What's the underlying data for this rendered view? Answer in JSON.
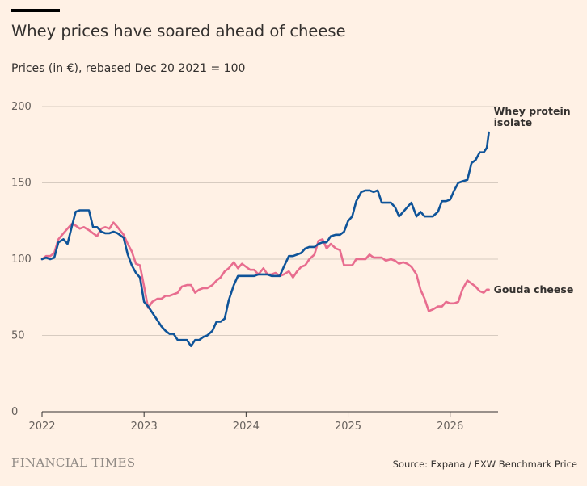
{
  "header": {
    "title": "Whey prices have soared ahead of cheese",
    "subtitle": "Prices (in €), rebased Dec 20 2021 = 100"
  },
  "footer": {
    "brand": "FINANCIAL TIMES",
    "source": "Source: Expana / EXW Benchmark Price"
  },
  "colors": {
    "background": "#FFF1E5",
    "whey": "#0F5499",
    "gouda": "#E86D8F",
    "grid": "#D7CBC0",
    "axis": "#33302E"
  },
  "chart_data": {
    "type": "line",
    "title": "Whey prices have soared ahead of cheese",
    "subtitle": "Prices (in €), rebased Dec 20 2021 = 100",
    "xlabel": "",
    "ylabel": "",
    "xlim": [
      2022.0,
      2026.47
    ],
    "ylim": [
      0,
      200
    ],
    "x_ticks": [
      "2022",
      "2023",
      "2024",
      "2025",
      "2026"
    ],
    "y_ticks": [
      0,
      50,
      100,
      150,
      200
    ],
    "grid": true,
    "legend": "direct labels at line ends",
    "series": [
      {
        "name": "Whey protein isolate",
        "label_lines": [
          "Whey protein",
          "isolate"
        ],
        "color": "#0F5499",
        "points": [
          [
            2022.0,
            100
          ],
          [
            2022.04,
            101
          ],
          [
            2022.08,
            100
          ],
          [
            2022.12,
            101
          ],
          [
            2022.16,
            111
          ],
          [
            2022.21,
            113
          ],
          [
            2022.25,
            110
          ],
          [
            2022.29,
            121
          ],
          [
            2022.33,
            131
          ],
          [
            2022.37,
            132
          ],
          [
            2022.41,
            132
          ],
          [
            2022.46,
            132
          ],
          [
            2022.5,
            121
          ],
          [
            2022.54,
            121
          ],
          [
            2022.58,
            118
          ],
          [
            2022.62,
            117
          ],
          [
            2022.66,
            117
          ],
          [
            2022.7,
            118
          ],
          [
            2022.74,
            117
          ],
          [
            2022.8,
            114
          ],
          [
            2022.84,
            103
          ],
          [
            2022.88,
            96
          ],
          [
            2022.92,
            91
          ],
          [
            2022.96,
            88
          ],
          [
            2023.0,
            72
          ],
          [
            2023.04,
            69
          ],
          [
            2023.08,
            65
          ],
          [
            2023.13,
            60
          ],
          [
            2023.17,
            56
          ],
          [
            2023.21,
            53
          ],
          [
            2023.25,
            51
          ],
          [
            2023.29,
            51
          ],
          [
            2023.33,
            47
          ],
          [
            2023.37,
            47
          ],
          [
            2023.42,
            47
          ],
          [
            2023.46,
            43
          ],
          [
            2023.5,
            47
          ],
          [
            2023.54,
            47
          ],
          [
            2023.58,
            49
          ],
          [
            2023.62,
            50
          ],
          [
            2023.67,
            53
          ],
          [
            2023.71,
            59
          ],
          [
            2023.75,
            59
          ],
          [
            2023.79,
            61
          ],
          [
            2023.83,
            73
          ],
          [
            2023.88,
            83
          ],
          [
            2023.92,
            89
          ],
          [
            2023.96,
            89
          ],
          [
            2024.0,
            89
          ],
          [
            2024.04,
            89
          ],
          [
            2024.08,
            89
          ],
          [
            2024.12,
            90
          ],
          [
            2024.17,
            90
          ],
          [
            2024.21,
            90
          ],
          [
            2024.25,
            89
          ],
          [
            2024.29,
            89
          ],
          [
            2024.33,
            89
          ],
          [
            2024.37,
            95
          ],
          [
            2024.42,
            102
          ],
          [
            2024.46,
            102
          ],
          [
            2024.5,
            103
          ],
          [
            2024.54,
            104
          ],
          [
            2024.58,
            107
          ],
          [
            2024.62,
            108
          ],
          [
            2024.67,
            108
          ],
          [
            2024.71,
            110
          ],
          [
            2024.75,
            111
          ],
          [
            2024.79,
            111
          ],
          [
            2024.83,
            115
          ],
          [
            2024.88,
            116
          ],
          [
            2024.92,
            116
          ],
          [
            2024.96,
            118
          ],
          [
            2025.0,
            125
          ],
          [
            2025.04,
            128
          ],
          [
            2025.08,
            138
          ],
          [
            2025.13,
            144
          ],
          [
            2025.17,
            145
          ],
          [
            2025.21,
            145
          ],
          [
            2025.25,
            144
          ],
          [
            2025.29,
            145
          ],
          [
            2025.33,
            137
          ],
          [
            2025.37,
            137
          ],
          [
            2025.42,
            137
          ],
          [
            2025.46,
            134
          ],
          [
            2025.5,
            128
          ],
          [
            2025.54,
            131
          ],
          [
            2025.58,
            134
          ],
          [
            2025.62,
            137
          ],
          [
            2025.67,
            128
          ],
          [
            2025.71,
            131
          ],
          [
            2025.75,
            128
          ],
          [
            2025.79,
            128
          ],
          [
            2025.83,
            128
          ],
          [
            2025.88,
            131
          ],
          [
            2025.92,
            138
          ],
          [
            2025.96,
            138
          ],
          [
            2026.0,
            139
          ],
          [
            2026.04,
            145
          ],
          [
            2026.08,
            150
          ],
          [
            2026.12,
            151
          ],
          [
            2026.17,
            152
          ],
          [
            2026.21,
            163
          ],
          [
            2026.25,
            165
          ],
          [
            2026.29,
            170
          ],
          [
            2026.33,
            170
          ],
          [
            2026.36,
            173
          ],
          [
            2026.38,
            183
          ]
        ]
      },
      {
        "name": "Gouda cheese",
        "label_lines": [
          "Gouda cheese"
        ],
        "color": "#E86D8F",
        "points": [
          [
            2022.0,
            100
          ],
          [
            2022.04,
            102
          ],
          [
            2022.08,
            102
          ],
          [
            2022.12,
            104
          ],
          [
            2022.16,
            113
          ],
          [
            2022.21,
            117
          ],
          [
            2022.25,
            120
          ],
          [
            2022.29,
            123
          ],
          [
            2022.33,
            122
          ],
          [
            2022.37,
            120
          ],
          [
            2022.41,
            121
          ],
          [
            2022.46,
            119
          ],
          [
            2022.5,
            117
          ],
          [
            2022.54,
            115
          ],
          [
            2022.58,
            120
          ],
          [
            2022.62,
            121
          ],
          [
            2022.66,
            120
          ],
          [
            2022.7,
            124
          ],
          [
            2022.74,
            121
          ],
          [
            2022.8,
            116
          ],
          [
            2022.84,
            110
          ],
          [
            2022.88,
            105
          ],
          [
            2022.92,
            97
          ],
          [
            2022.96,
            96
          ],
          [
            2023.0,
            82
          ],
          [
            2023.04,
            68
          ],
          [
            2023.08,
            72
          ],
          [
            2023.13,
            74
          ],
          [
            2023.17,
            74
          ],
          [
            2023.21,
            76
          ],
          [
            2023.25,
            76
          ],
          [
            2023.29,
            77
          ],
          [
            2023.33,
            78
          ],
          [
            2023.37,
            82
          ],
          [
            2023.42,
            83
          ],
          [
            2023.46,
            83
          ],
          [
            2023.5,
            78
          ],
          [
            2023.54,
            80
          ],
          [
            2023.58,
            81
          ],
          [
            2023.62,
            81
          ],
          [
            2023.67,
            83
          ],
          [
            2023.71,
            86
          ],
          [
            2023.75,
            88
          ],
          [
            2023.79,
            92
          ],
          [
            2023.83,
            94
          ],
          [
            2023.88,
            98
          ],
          [
            2023.92,
            94
          ],
          [
            2023.96,
            97
          ],
          [
            2024.0,
            95
          ],
          [
            2024.04,
            93
          ],
          [
            2024.08,
            93
          ],
          [
            2024.12,
            90
          ],
          [
            2024.17,
            94
          ],
          [
            2024.21,
            90
          ],
          [
            2024.25,
            90
          ],
          [
            2024.29,
            91
          ],
          [
            2024.33,
            89
          ],
          [
            2024.37,
            90
          ],
          [
            2024.42,
            92
          ],
          [
            2024.46,
            88
          ],
          [
            2024.5,
            92
          ],
          [
            2024.54,
            95
          ],
          [
            2024.58,
            96
          ],
          [
            2024.62,
            100
          ],
          [
            2024.67,
            103
          ],
          [
            2024.71,
            112
          ],
          [
            2024.75,
            113
          ],
          [
            2024.79,
            107
          ],
          [
            2024.83,
            110
          ],
          [
            2024.88,
            107
          ],
          [
            2024.92,
            106
          ],
          [
            2024.96,
            96
          ],
          [
            2025.0,
            96
          ],
          [
            2025.04,
            96
          ],
          [
            2025.08,
            100
          ],
          [
            2025.13,
            100
          ],
          [
            2025.17,
            100
          ],
          [
            2025.21,
            103
          ],
          [
            2025.25,
            101
          ],
          [
            2025.29,
            101
          ],
          [
            2025.33,
            101
          ],
          [
            2025.37,
            99
          ],
          [
            2025.42,
            100
          ],
          [
            2025.46,
            99
          ],
          [
            2025.5,
            97
          ],
          [
            2025.54,
            98
          ],
          [
            2025.58,
            97
          ],
          [
            2025.62,
            95
          ],
          [
            2025.67,
            90
          ],
          [
            2025.71,
            80
          ],
          [
            2025.75,
            74
          ],
          [
            2025.79,
            66
          ],
          [
            2025.83,
            67
          ],
          [
            2025.88,
            69
          ],
          [
            2025.92,
            69
          ],
          [
            2025.96,
            72
          ],
          [
            2026.0,
            71
          ],
          [
            2026.04,
            71
          ],
          [
            2026.08,
            72
          ],
          [
            2026.12,
            80
          ],
          [
            2026.17,
            86
          ],
          [
            2026.21,
            84
          ],
          [
            2026.25,
            82
          ],
          [
            2026.29,
            79
          ],
          [
            2026.33,
            78
          ],
          [
            2026.36,
            80
          ],
          [
            2026.38,
            80
          ]
        ]
      }
    ]
  }
}
